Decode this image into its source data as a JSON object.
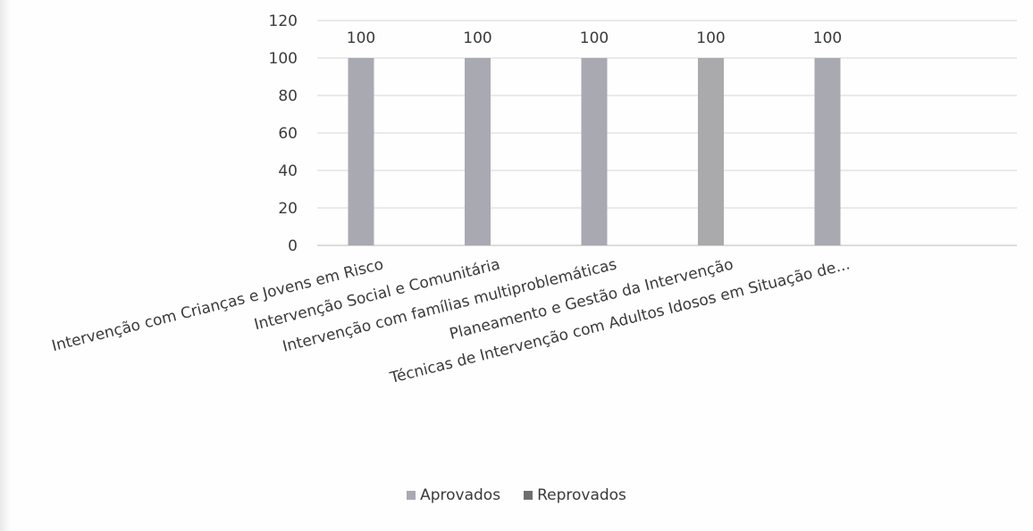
{
  "chart_data": {
    "type": "bar",
    "categories": [
      "Intervenção com Crianças e Jovens em Risco",
      "Intervenção Social e Comunitária",
      "Intervenção com famílias multiproblemáticas",
      "Planeamento e Gestão da Intervenção",
      "Técnicas de Intervenção com Adultos Idosos em Situação de..."
    ],
    "series": [
      {
        "name": "Aprovados",
        "values": [
          100,
          100,
          100,
          100,
          100
        ],
        "color": "#a9a9b2"
      },
      {
        "name": "Reprovados",
        "values": [
          0,
          0,
          0,
          0,
          0
        ],
        "color": "#6e6e74"
      }
    ],
    "data_labels": [
      "100",
      "100",
      "100",
      "100",
      "100"
    ],
    "y_ticks": [
      "0",
      "20",
      "40",
      "60",
      "80",
      "100",
      "120"
    ],
    "ylim": [
      0,
      120
    ],
    "grid": true,
    "legend_position": "bottom",
    "title": "",
    "xlabel": "",
    "ylabel": ""
  }
}
